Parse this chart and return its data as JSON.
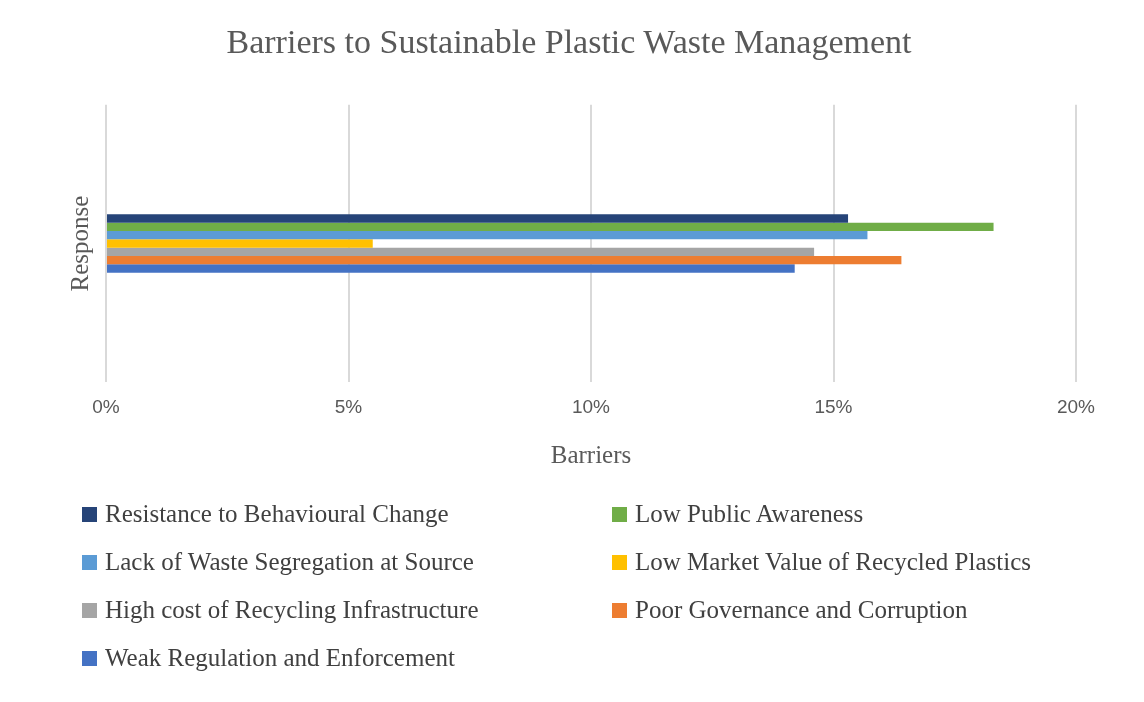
{
  "chart_data": {
    "type": "bar",
    "orientation": "horizontal",
    "title": "Barriers to Sustainable Plastic Waste Management",
    "xlabel": "Barriers",
    "ylabel": "Response",
    "categories": [
      null
    ],
    "series": [
      {
        "name": "Resistance to Behavioural Change",
        "color": "#264478",
        "values": [
          15.3
        ]
      },
      {
        "name": "Low Public Awareness",
        "color": "#70ad47",
        "values": [
          18.3
        ]
      },
      {
        "name": "Lack of Waste Segregation at Source",
        "color": "#5b9bd5",
        "values": [
          15.7
        ]
      },
      {
        "name": "Low Market Value of Recycled Plastics",
        "color": "#ffc000",
        "values": [
          5.5
        ]
      },
      {
        "name": "High cost of Recycling Infrastructure",
        "color": "#a5a5a5",
        "values": [
          14.6
        ]
      },
      {
        "name": "Poor Governance and Corruption",
        "color": "#ed7d31",
        "values": [
          16.4
        ]
      },
      {
        "name": "Weak Regulation and Enforcement",
        "color": "#4472c4",
        "values": [
          14.2
        ]
      }
    ],
    "xlim": [
      0,
      20
    ],
    "xticks": [
      {
        "value": 0,
        "label": "0%"
      },
      {
        "value": 5,
        "label": "5%"
      },
      {
        "value": 10,
        "label": "10%"
      },
      {
        "value": 15,
        "label": "15%"
      },
      {
        "value": 20,
        "label": "20%"
      }
    ],
    "grid": "x",
    "legend": "bottom"
  }
}
